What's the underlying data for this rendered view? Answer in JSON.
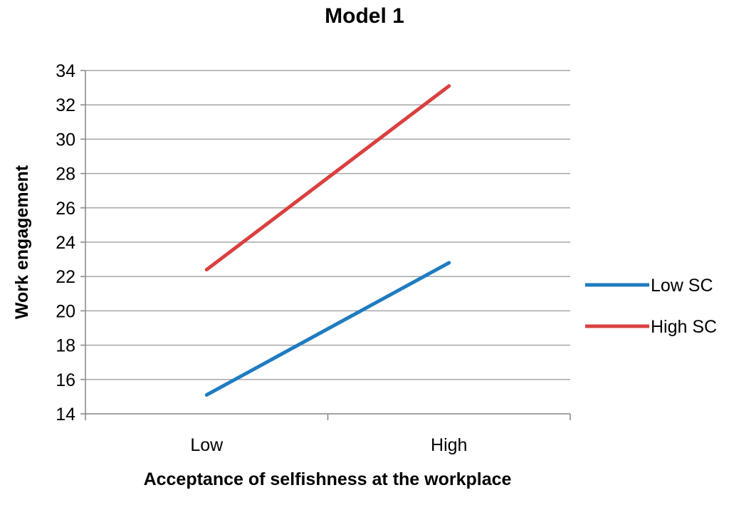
{
  "chart_data": {
    "type": "line",
    "title": "Model 1",
    "xlabel": "Acceptance of selfishness at the workplace",
    "ylabel": "Work engagement",
    "categories": [
      "Low",
      "High"
    ],
    "ylim": [
      14,
      34
    ],
    "ytick_step": 2,
    "grid": true,
    "legend_position": "right",
    "series": [
      {
        "name": "Low SC",
        "values": [
          15.1,
          22.8
        ],
        "color": "#1f7cc1"
      },
      {
        "name": "High SC",
        "values": [
          22.4,
          33.1
        ],
        "color": "#d9403f"
      }
    ]
  }
}
